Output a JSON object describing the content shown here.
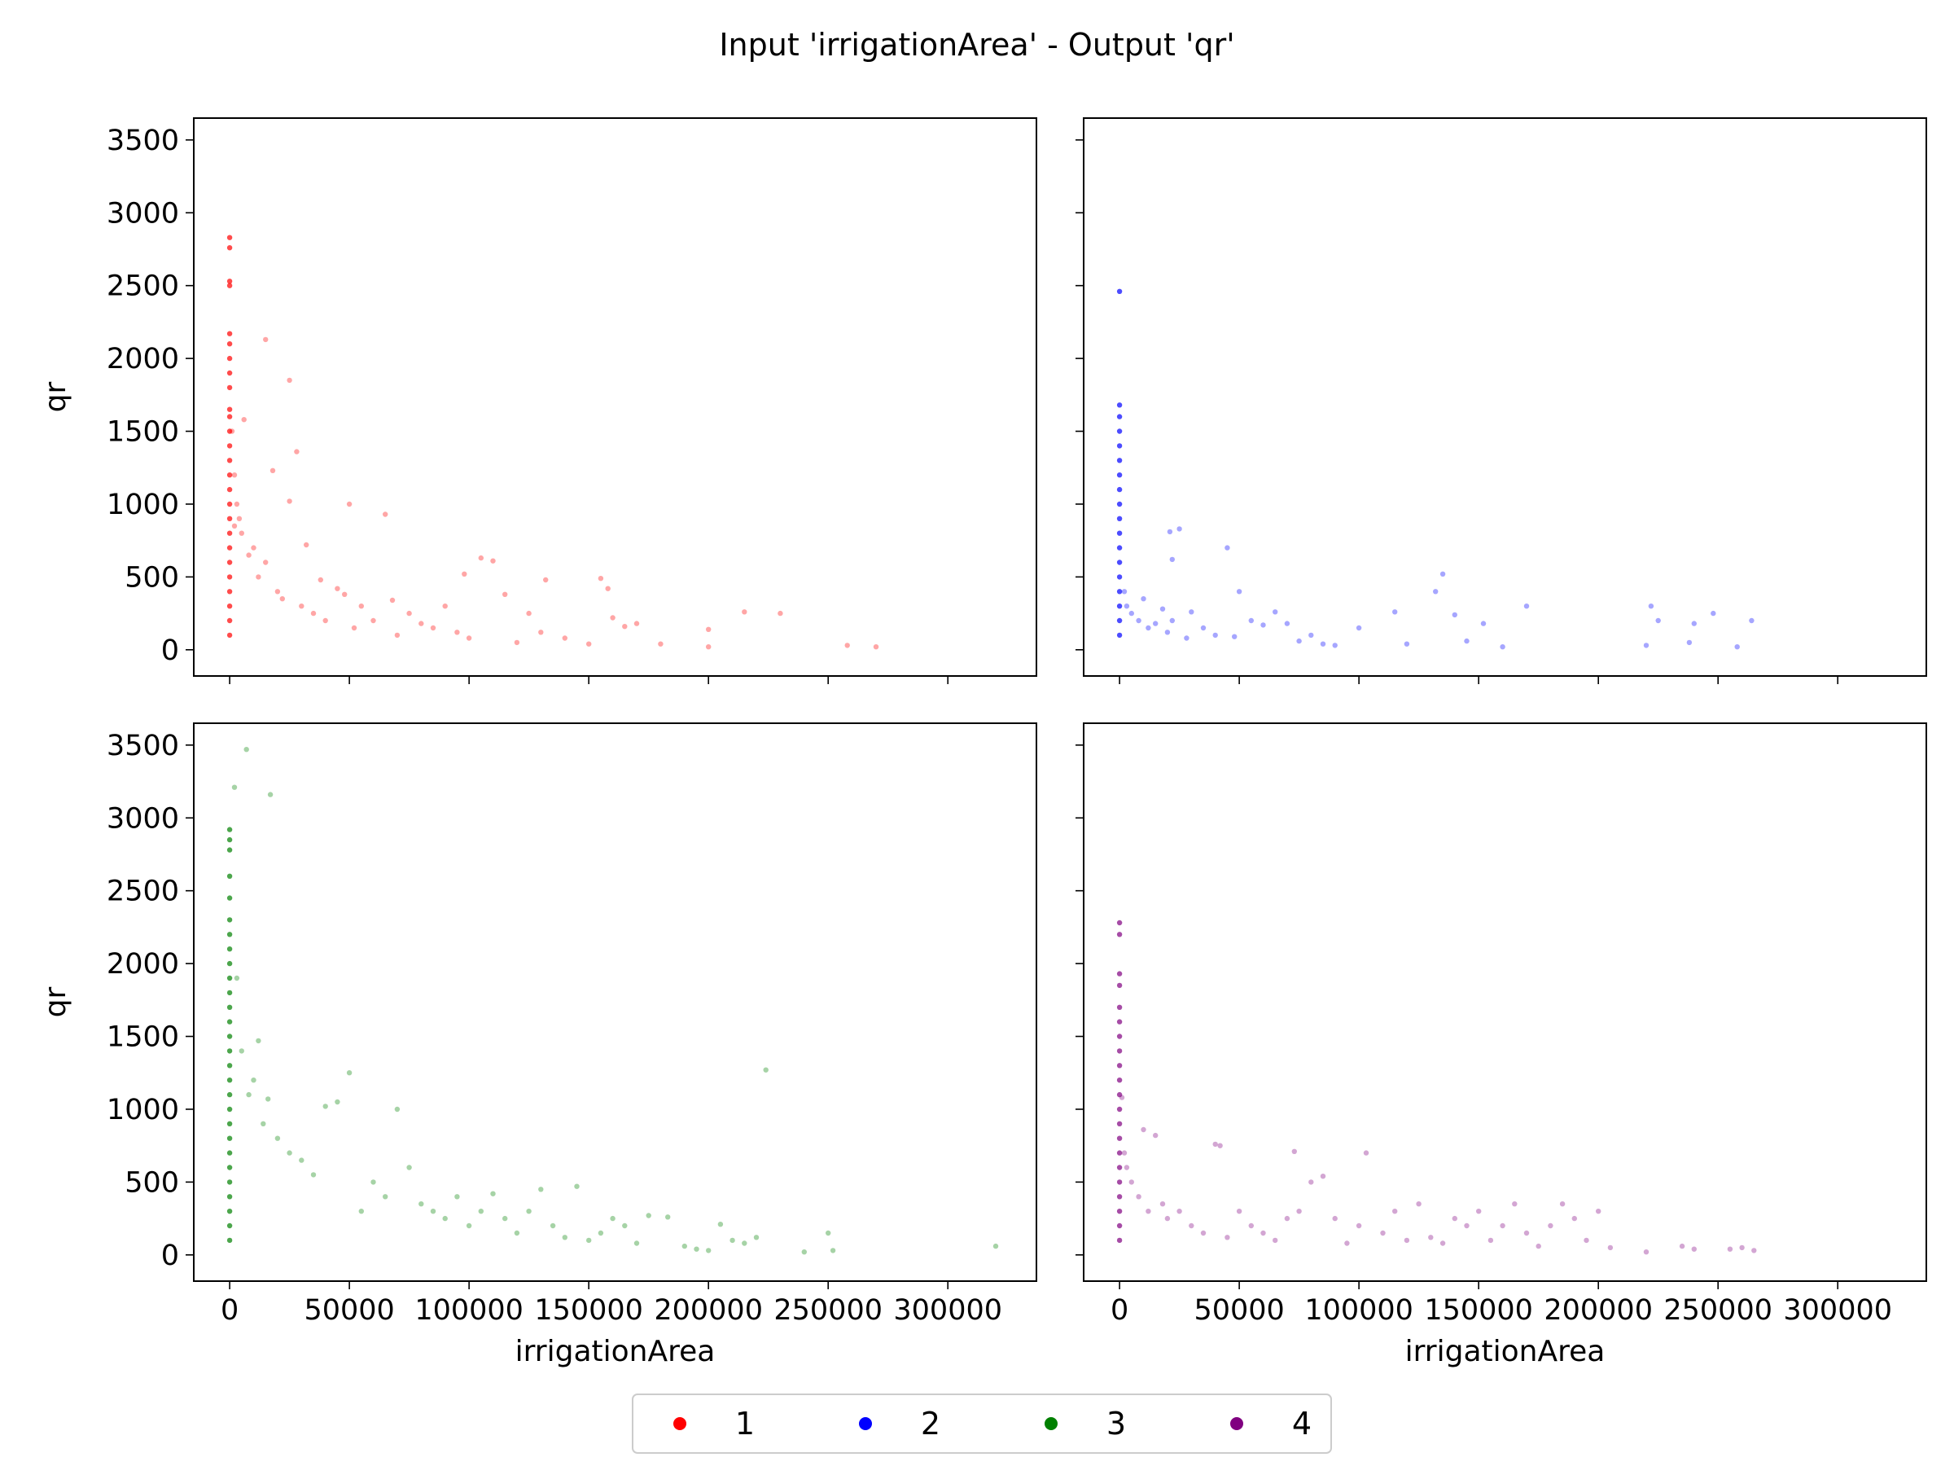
{
  "figure": {
    "title": "Input 'irrigationArea' - Output 'qr'"
  },
  "chart_data": {
    "type": "scatter",
    "layout": "2x2 grid, shared x and y axes",
    "xlabel": "irrigationArea",
    "ylabel": "qr",
    "xlim": [
      -15000,
      337000
    ],
    "ylim": [
      -180,
      3650
    ],
    "x_ticks": [
      0,
      50000,
      100000,
      150000,
      200000,
      250000,
      300000
    ],
    "x_tick_labels": [
      "0",
      "50000",
      "100000",
      "150000",
      "200000",
      "250000",
      "300000"
    ],
    "y_ticks": [
      0,
      500,
      1000,
      1500,
      2000,
      2500,
      3000,
      3500
    ],
    "y_tick_labels": [
      "0",
      "500",
      "1000",
      "1500",
      "2000",
      "2500",
      "3000",
      "3500"
    ],
    "grid": false,
    "legend": {
      "placement": "bottom-center",
      "ncols": 4
    },
    "panels": [
      {
        "series": "1",
        "color": "#ff0000",
        "points": [
          [
            0,
            2830
          ],
          [
            0,
            2760
          ],
          [
            0,
            2530
          ],
          [
            0,
            2500
          ],
          [
            0,
            2170
          ],
          [
            0,
            2100
          ],
          [
            0,
            2000
          ],
          [
            0,
            1900
          ],
          [
            0,
            1800
          ],
          [
            0,
            1650
          ],
          [
            0,
            1600
          ],
          [
            0,
            1500
          ],
          [
            0,
            1400
          ],
          [
            0,
            1300
          ],
          [
            0,
            1200
          ],
          [
            0,
            1100
          ],
          [
            0,
            1000
          ],
          [
            0,
            900
          ],
          [
            0,
            800
          ],
          [
            0,
            700
          ],
          [
            0,
            600
          ],
          [
            0,
            500
          ],
          [
            0,
            400
          ],
          [
            0,
            300
          ],
          [
            0,
            200
          ],
          [
            0,
            100
          ],
          [
            1000,
            1500
          ],
          [
            2000,
            1200
          ],
          [
            3000,
            1000
          ],
          [
            4000,
            900
          ],
          [
            5000,
            800
          ],
          [
            6000,
            1580
          ],
          [
            2000,
            850
          ],
          [
            8000,
            650
          ],
          [
            10000,
            700
          ],
          [
            12000,
            500
          ],
          [
            15000,
            2130
          ],
          [
            15000,
            600
          ],
          [
            18000,
            1230
          ],
          [
            20000,
            400
          ],
          [
            22000,
            350
          ],
          [
            25000,
            1850
          ],
          [
            25000,
            1020
          ],
          [
            28000,
            1360
          ],
          [
            30000,
            300
          ],
          [
            32000,
            720
          ],
          [
            35000,
            250
          ],
          [
            38000,
            480
          ],
          [
            40000,
            200
          ],
          [
            45000,
            420
          ],
          [
            48000,
            380
          ],
          [
            50000,
            1000
          ],
          [
            52000,
            150
          ],
          [
            55000,
            300
          ],
          [
            60000,
            200
          ],
          [
            65000,
            930
          ],
          [
            68000,
            340
          ],
          [
            70000,
            100
          ],
          [
            75000,
            250
          ],
          [
            80000,
            180
          ],
          [
            85000,
            150
          ],
          [
            90000,
            300
          ],
          [
            95000,
            120
          ],
          [
            98000,
            520
          ],
          [
            100000,
            80
          ],
          [
            105000,
            630
          ],
          [
            110000,
            610
          ],
          [
            115000,
            380
          ],
          [
            120000,
            50
          ],
          [
            125000,
            250
          ],
          [
            130000,
            120
          ],
          [
            132000,
            480
          ],
          [
            140000,
            80
          ],
          [
            150000,
            40
          ],
          [
            155000,
            490
          ],
          [
            158000,
            420
          ],
          [
            160000,
            220
          ],
          [
            165000,
            160
          ],
          [
            170000,
            180
          ],
          [
            180000,
            40
          ],
          [
            200000,
            140
          ],
          [
            200000,
            20
          ],
          [
            215000,
            260
          ],
          [
            230000,
            250
          ],
          [
            258000,
            30
          ],
          [
            270000,
            20
          ]
        ]
      },
      {
        "series": "2",
        "color": "#0000ff",
        "points": [
          [
            0,
            2460
          ],
          [
            0,
            1680
          ],
          [
            0,
            1600
          ],
          [
            0,
            1500
          ],
          [
            0,
            1400
          ],
          [
            0,
            1300
          ],
          [
            0,
            1200
          ],
          [
            0,
            1100
          ],
          [
            0,
            1000
          ],
          [
            0,
            900
          ],
          [
            0,
            800
          ],
          [
            0,
            700
          ],
          [
            0,
            600
          ],
          [
            0,
            500
          ],
          [
            0,
            400
          ],
          [
            0,
            300
          ],
          [
            0,
            200
          ],
          [
            0,
            100
          ],
          [
            2000,
            400
          ],
          [
            3000,
            300
          ],
          [
            5000,
            250
          ],
          [
            8000,
            200
          ],
          [
            10000,
            350
          ],
          [
            12000,
            150
          ],
          [
            15000,
            180
          ],
          [
            18000,
            280
          ],
          [
            20000,
            120
          ],
          [
            21000,
            810
          ],
          [
            22000,
            200
          ],
          [
            22000,
            620
          ],
          [
            25000,
            830
          ],
          [
            28000,
            80
          ],
          [
            30000,
            260
          ],
          [
            35000,
            150
          ],
          [
            40000,
            100
          ],
          [
            45000,
            700
          ],
          [
            48000,
            90
          ],
          [
            50000,
            400
          ],
          [
            55000,
            200
          ],
          [
            60000,
            170
          ],
          [
            65000,
            260
          ],
          [
            70000,
            180
          ],
          [
            75000,
            60
          ],
          [
            80000,
            100
          ],
          [
            85000,
            40
          ],
          [
            90000,
            30
          ],
          [
            100000,
            150
          ],
          [
            115000,
            260
          ],
          [
            120000,
            40
          ],
          [
            132000,
            400
          ],
          [
            135000,
            520
          ],
          [
            140000,
            240
          ],
          [
            145000,
            60
          ],
          [
            152000,
            180
          ],
          [
            160000,
            20
          ],
          [
            170000,
            300
          ],
          [
            220000,
            30
          ],
          [
            222000,
            300
          ],
          [
            225000,
            200
          ],
          [
            238000,
            50
          ],
          [
            240000,
            180
          ],
          [
            248000,
            250
          ],
          [
            258000,
            20
          ],
          [
            264000,
            200
          ]
        ]
      },
      {
        "series": "3",
        "color": "#008000",
        "points": [
          [
            7000,
            3470
          ],
          [
            2000,
            3210
          ],
          [
            0,
            2920
          ],
          [
            0,
            2850
          ],
          [
            0,
            2780
          ],
          [
            0,
            2600
          ],
          [
            0,
            2450
          ],
          [
            0,
            2300
          ],
          [
            0,
            2200
          ],
          [
            0,
            2100
          ],
          [
            0,
            2000
          ],
          [
            0,
            1900
          ],
          [
            0,
            1800
          ],
          [
            0,
            1700
          ],
          [
            0,
            1600
          ],
          [
            0,
            1500
          ],
          [
            0,
            1400
          ],
          [
            0,
            1300
          ],
          [
            0,
            1200
          ],
          [
            0,
            1100
          ],
          [
            0,
            1000
          ],
          [
            0,
            900
          ],
          [
            0,
            800
          ],
          [
            0,
            700
          ],
          [
            0,
            600
          ],
          [
            0,
            500
          ],
          [
            0,
            400
          ],
          [
            0,
            300
          ],
          [
            0,
            200
          ],
          [
            0,
            100
          ],
          [
            17000,
            3160
          ],
          [
            3000,
            1900
          ],
          [
            5000,
            1400
          ],
          [
            8000,
            1100
          ],
          [
            10000,
            1200
          ],
          [
            12000,
            1470
          ],
          [
            14000,
            900
          ],
          [
            16000,
            1070
          ],
          [
            20000,
            800
          ],
          [
            25000,
            700
          ],
          [
            30000,
            650
          ],
          [
            35000,
            550
          ],
          [
            40000,
            1020
          ],
          [
            45000,
            1050
          ],
          [
            50000,
            1250
          ],
          [
            55000,
            300
          ],
          [
            60000,
            500
          ],
          [
            65000,
            400
          ],
          [
            70000,
            1000
          ],
          [
            75000,
            600
          ],
          [
            80000,
            350
          ],
          [
            85000,
            300
          ],
          [
            90000,
            250
          ],
          [
            95000,
            400
          ],
          [
            100000,
            200
          ],
          [
            105000,
            300
          ],
          [
            110000,
            420
          ],
          [
            115000,
            250
          ],
          [
            120000,
            150
          ],
          [
            125000,
            300
          ],
          [
            130000,
            450
          ],
          [
            135000,
            200
          ],
          [
            140000,
            120
          ],
          [
            145000,
            470
          ],
          [
            150000,
            100
          ],
          [
            155000,
            150
          ],
          [
            160000,
            250
          ],
          [
            165000,
            200
          ],
          [
            170000,
            80
          ],
          [
            175000,
            270
          ],
          [
            183000,
            260
          ],
          [
            190000,
            60
          ],
          [
            195000,
            40
          ],
          [
            200000,
            30
          ],
          [
            205000,
            210
          ],
          [
            210000,
            100
          ],
          [
            215000,
            80
          ],
          [
            220000,
            120
          ],
          [
            224000,
            1270
          ],
          [
            240000,
            20
          ],
          [
            250000,
            150
          ],
          [
            252000,
            30
          ],
          [
            320000,
            60
          ]
        ]
      },
      {
        "series": "4",
        "color": "#800080",
        "points": [
          [
            0,
            2280
          ],
          [
            0,
            2200
          ],
          [
            0,
            1930
          ],
          [
            0,
            1850
          ],
          [
            0,
            1700
          ],
          [
            0,
            1600
          ],
          [
            0,
            1500
          ],
          [
            0,
            1400
          ],
          [
            0,
            1300
          ],
          [
            0,
            1200
          ],
          [
            0,
            1100
          ],
          [
            0,
            1000
          ],
          [
            0,
            900
          ],
          [
            0,
            800
          ],
          [
            0,
            700
          ],
          [
            0,
            600
          ],
          [
            0,
            500
          ],
          [
            0,
            400
          ],
          [
            0,
            300
          ],
          [
            0,
            200
          ],
          [
            0,
            100
          ],
          [
            1000,
            1080
          ],
          [
            2000,
            700
          ],
          [
            3000,
            600
          ],
          [
            5000,
            500
          ],
          [
            8000,
            400
          ],
          [
            10000,
            860
          ],
          [
            12000,
            300
          ],
          [
            15000,
            820
          ],
          [
            18000,
            350
          ],
          [
            20000,
            250
          ],
          [
            25000,
            300
          ],
          [
            30000,
            200
          ],
          [
            35000,
            150
          ],
          [
            40000,
            760
          ],
          [
            42000,
            750
          ],
          [
            45000,
            120
          ],
          [
            50000,
            300
          ],
          [
            55000,
            200
          ],
          [
            60000,
            150
          ],
          [
            65000,
            100
          ],
          [
            70000,
            250
          ],
          [
            73000,
            710
          ],
          [
            75000,
            300
          ],
          [
            80000,
            500
          ],
          [
            85000,
            540
          ],
          [
            90000,
            250
          ],
          [
            95000,
            80
          ],
          [
            100000,
            200
          ],
          [
            103000,
            700
          ],
          [
            110000,
            150
          ],
          [
            115000,
            300
          ],
          [
            120000,
            100
          ],
          [
            125000,
            350
          ],
          [
            130000,
            120
          ],
          [
            135000,
            80
          ],
          [
            140000,
            250
          ],
          [
            145000,
            200
          ],
          [
            150000,
            300
          ],
          [
            155000,
            100
          ],
          [
            160000,
            200
          ],
          [
            165000,
            350
          ],
          [
            170000,
            150
          ],
          [
            175000,
            60
          ],
          [
            180000,
            200
          ],
          [
            185000,
            350
          ],
          [
            190000,
            250
          ],
          [
            195000,
            100
          ],
          [
            200000,
            300
          ],
          [
            205000,
            50
          ],
          [
            220000,
            20
          ],
          [
            235000,
            60
          ],
          [
            240000,
            40
          ],
          [
            255000,
            40
          ],
          [
            260000,
            50
          ],
          [
            265000,
            30
          ]
        ]
      }
    ]
  }
}
